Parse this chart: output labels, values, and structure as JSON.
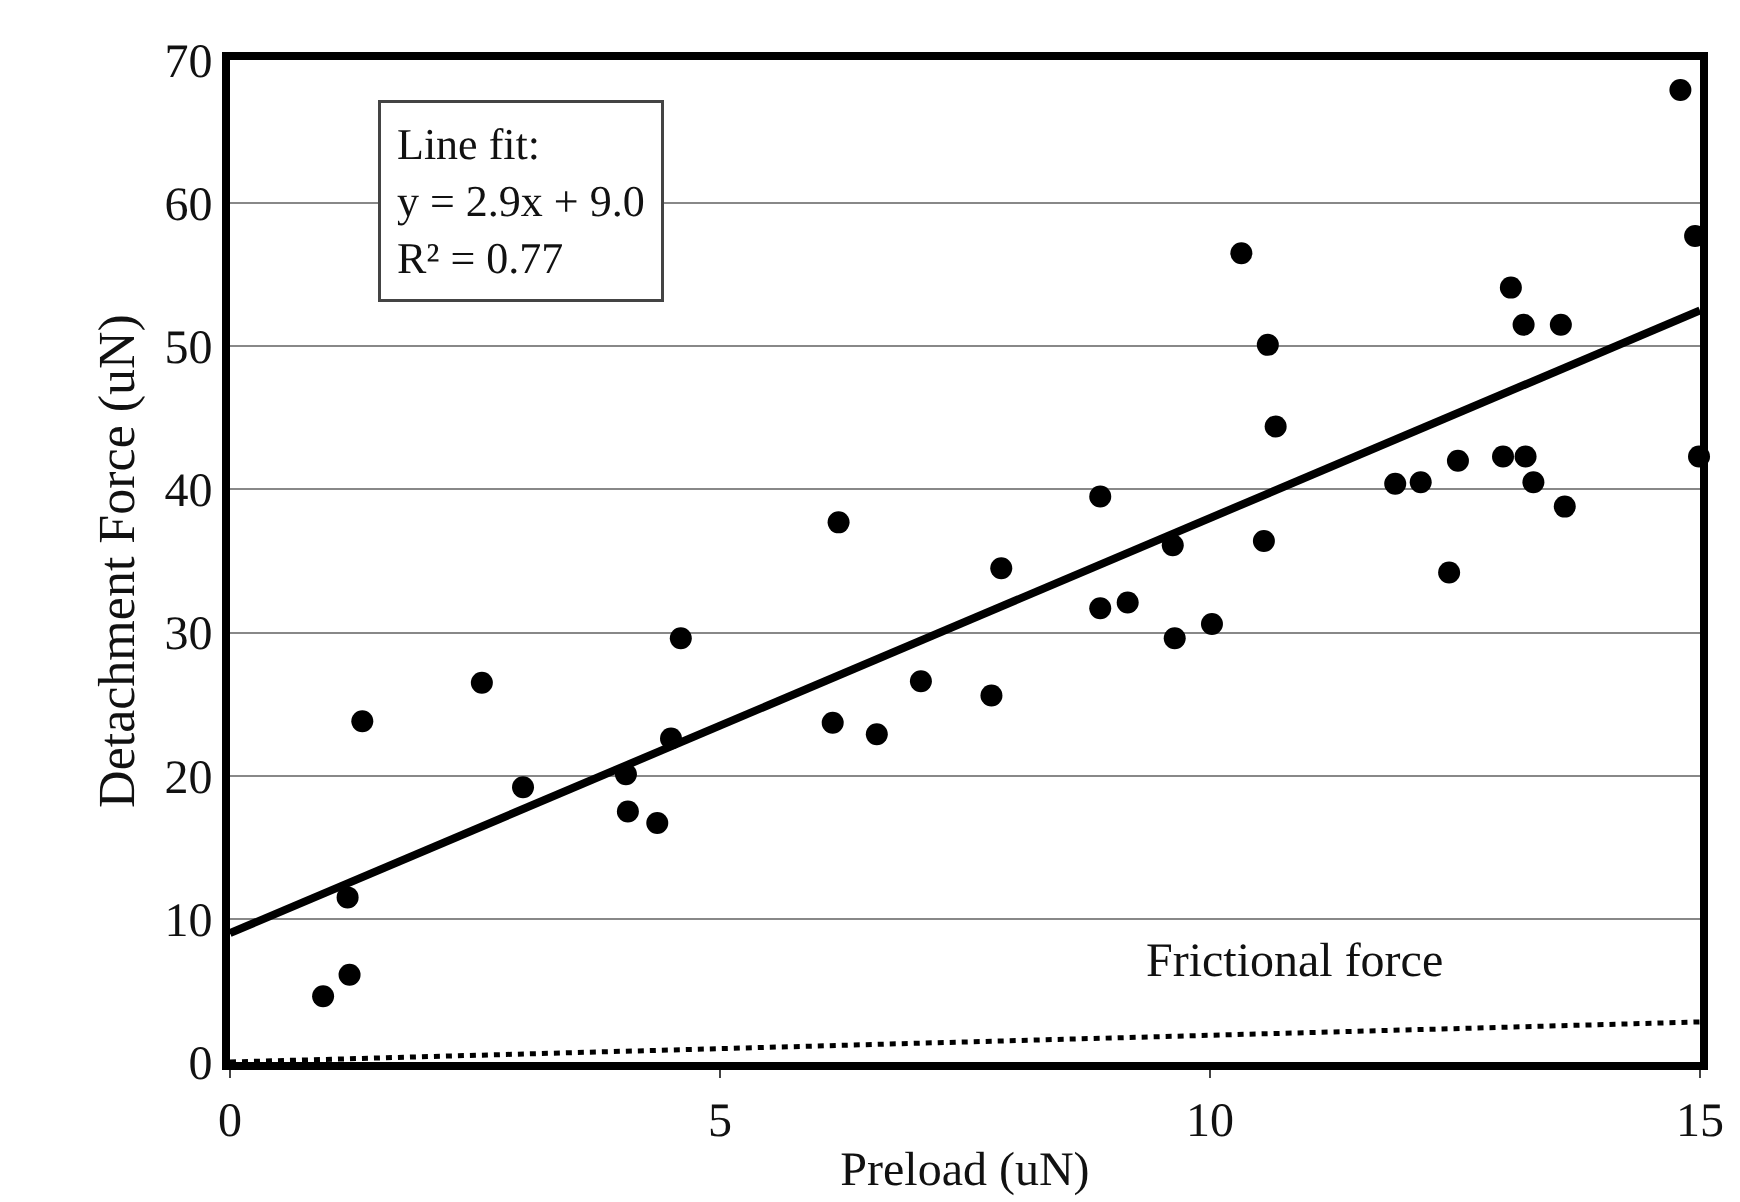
{
  "chart_data": {
    "type": "scatter",
    "xlabel": "Preload (uN)",
    "ylabel": "Detachment Force (uN)",
    "xlim": [
      0,
      15
    ],
    "xticks": [
      0,
      5,
      10,
      15
    ],
    "ylim": [
      0,
      70
    ],
    "yticks": [
      0,
      10,
      20,
      30,
      40,
      50,
      60,
      70
    ],
    "grid": "y",
    "series": [
      {
        "marker": "circle",
        "color": "#000000",
        "x": [
          0.95,
          1.22,
          1.2,
          1.35,
          2.57,
          2.99,
          4.04,
          4.06,
          4.36,
          4.5,
          4.6,
          6.15,
          6.21,
          6.6,
          7.05,
          7.77,
          7.87,
          8.88,
          8.88,
          9.16,
          9.62,
          9.64,
          10.02,
          10.32,
          10.55,
          10.59,
          10.67,
          11.89,
          12.15,
          12.44,
          12.53,
          12.99,
          13.07,
          13.2,
          13.22,
          13.3,
          13.58,
          13.62,
          14.8,
          14.95,
          14.99
        ],
        "values": [
          4.6,
          6.1,
          11.5,
          23.8,
          26.5,
          19.2,
          20.1,
          17.5,
          16.7,
          22.6,
          29.6,
          23.7,
          37.7,
          22.9,
          26.6,
          25.6,
          34.5,
          39.5,
          31.7,
          32.1,
          36.1,
          29.6,
          30.6,
          56.5,
          36.4,
          50.1,
          44.4,
          40.4,
          40.5,
          34.2,
          42.0,
          42.3,
          54.1,
          51.5,
          42.3,
          40.5,
          51.5,
          38.8,
          67.9,
          57.7,
          42.3
        ]
      },
      {
        "type": "line",
        "line_style": "solid",
        "color": "#000000",
        "x": [
          0,
          15
        ],
        "values": [
          9.0,
          52.5
        ]
      },
      {
        "type": "line",
        "line_style": "dotted",
        "color": "#000000",
        "x": [
          0,
          15
        ],
        "values": [
          0,
          2.8
        ]
      }
    ],
    "annotations": [
      "Line fit:\ny = 2.9x + 9.0\nR² = 0.77",
      "Frictional force"
    ]
  }
}
